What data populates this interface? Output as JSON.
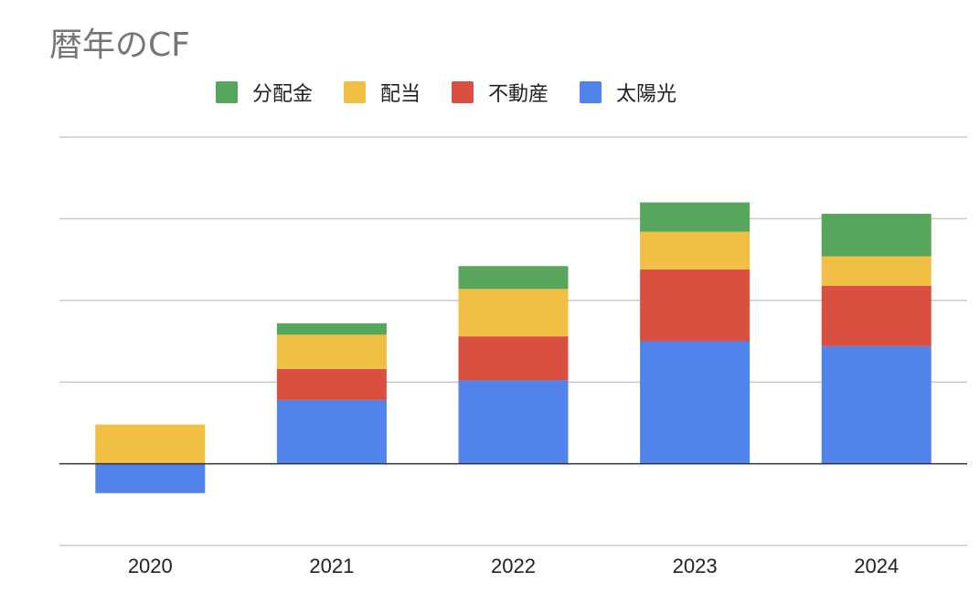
{
  "chart_data": {
    "type": "bar",
    "stacked": true,
    "title": "暦年のCF",
    "xlabel": "",
    "ylabel": "",
    "categories": [
      "2020",
      "2021",
      "2022",
      "2023",
      "2024"
    ],
    "series": [
      {
        "name": "太陽光",
        "color": "#5283eb",
        "values": [
          -18,
          39,
          51,
          75,
          72
        ]
      },
      {
        "name": "不動産",
        "color": "#d95040",
        "values": [
          0,
          19,
          27,
          44,
          37
        ]
      },
      {
        "name": "配当",
        "color": "#f0bf43",
        "values": [
          24,
          21,
          29,
          23,
          18
        ]
      },
      {
        "name": "分配金",
        "color": "#58a65c",
        "values": [
          0,
          7,
          14,
          18,
          26
        ]
      }
    ],
    "legend_order": [
      "分配金",
      "配当",
      "不動産",
      "太陽光"
    ],
    "ylim": [
      -50,
      200
    ],
    "ygrid": [
      -50,
      0,
      50,
      100,
      150,
      200
    ],
    "y_tick_labels_visible": false,
    "grid": true,
    "legend_position": "top"
  }
}
